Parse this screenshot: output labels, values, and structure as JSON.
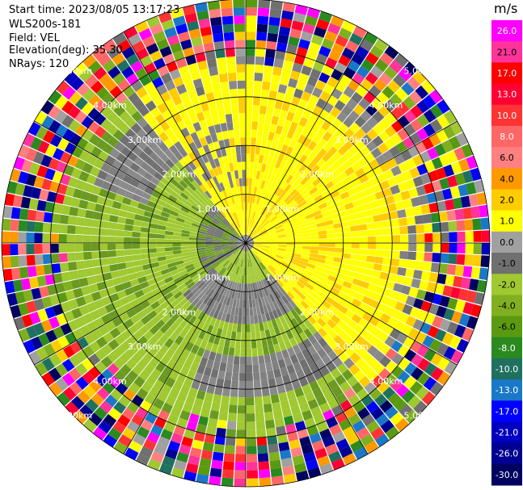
{
  "info": {
    "start_time": "Start time: 2023/08/05 13:17:23",
    "instrument": "WLS200s-181",
    "field": "Field: VEL",
    "elevation": "Elevation(deg): 35.30",
    "nrays": "NRays: 120"
  },
  "chart_data": {
    "type": "heatmap",
    "projection": "polar-ppi",
    "n_rays": 120,
    "max_range_km": 5.0,
    "range_rings_km": [
      1,
      2,
      3,
      4,
      5
    ],
    "ring_labels": [
      "1.00km",
      "2.00km",
      "3.00km",
      "4.00km",
      "5.00km"
    ],
    "colorbar": {
      "unit": "m/s",
      "labels": [
        "26.0",
        "21.0",
        "17.0",
        "13.0",
        "10.0",
        "8.0",
        "6.0",
        "4.0",
        "2.0",
        "1.0",
        "0.0",
        "-1.0",
        "-2.0",
        "-4.0",
        "-6.0",
        "-8.0",
        "-10.0",
        "-13.0",
        "-17.0",
        "-21.0",
        "-26.0",
        "-30.0"
      ],
      "colors": [
        "#ff00ff",
        "#ff3399",
        "#ff0000",
        "#ff0033",
        "#ff3333",
        "#ff6666",
        "#ff8080",
        "#ff9900",
        "#ffcc00",
        "#ffff00",
        "#a0a0a0",
        "#707070",
        "#a0c830",
        "#80b020",
        "#5a9a10",
        "#2a8a20",
        "#207060",
        "#1a78c8",
        "#0000ff",
        "#0000c0",
        "#000090",
        "#000060"
      ]
    },
    "pattern_note_values": {
      "inner_positive_sector_deg": [
        -60,
        140
      ],
      "inner_negative_sector_deg": [
        140,
        300
      ]
    }
  }
}
